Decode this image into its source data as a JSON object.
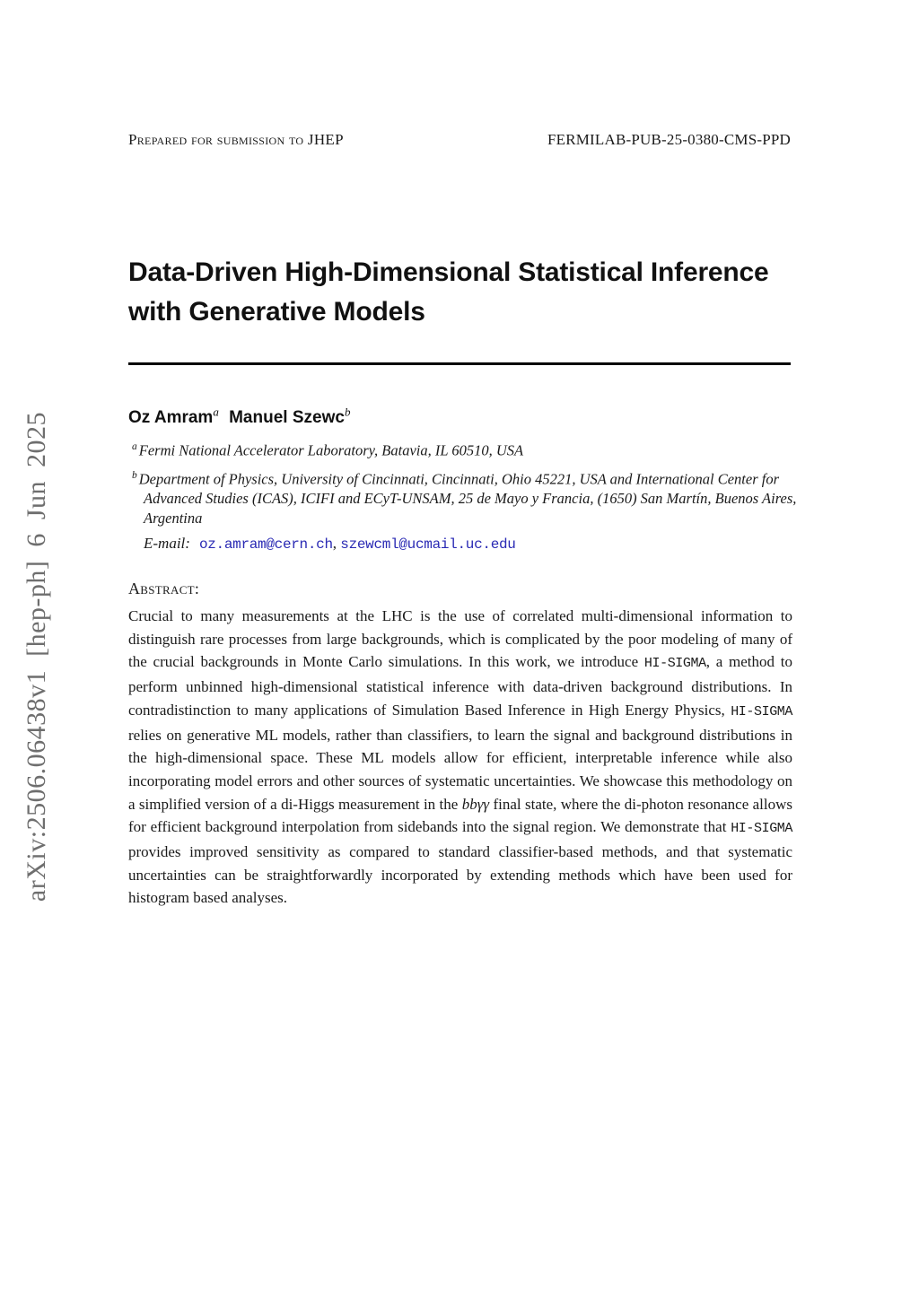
{
  "header": {
    "left": "Prepared for submission to JHEP",
    "right": "FERMILAB-PUB-25-0380-CMS-PPD"
  },
  "title": {
    "line1": "Data-Driven High-Dimensional Statistical Inference",
    "line2": "with Generative Models"
  },
  "authors": [
    {
      "name": "Oz Amram",
      "sup": "a"
    },
    {
      "name": "Manuel Szewc",
      "sup": "b"
    }
  ],
  "affiliations": [
    {
      "sup": "a",
      "text": "Fermi National Accelerator Laboratory, Batavia, IL 60510, USA"
    },
    {
      "sup": "b",
      "text": "Department of Physics, University of Cincinnati, Cincinnati, Ohio 45221, USA and International Center for Advanced Studies (ICAS), ICIFI and ECyT-UNSAM, 25 de Mayo y Francia, (1650) San Martín, Buenos Aires, Argentina"
    }
  ],
  "email": {
    "label": "E-mail:",
    "addresses": [
      "oz.amram@cern.ch",
      "szewcml@ucmail.uc.edu"
    ],
    "separator": ", ",
    "link_color": "#2a2ab4"
  },
  "abstract": {
    "label": "Abstract:",
    "runs": [
      {
        "type": "text",
        "text": "Crucial to many measurements at the LHC is the use of correlated multi-dimensional information to distinguish rare processes from large backgrounds, which is complicated by the poor modeling of many of the crucial backgrounds in Monte Carlo simulations. In this work, we introduce "
      },
      {
        "type": "mono",
        "text": "HI-SIGMA"
      },
      {
        "type": "text",
        "text": ", a method to perform unbinned high-dimensional statistical inference with data-driven background distributions. In contradistinction to many applications of Simulation Based Inference in High Energy Physics, "
      },
      {
        "type": "mono",
        "text": "HI-SIGMA"
      },
      {
        "type": "text",
        "text": " relies on generative ML models, rather than classifiers, to learn the signal and background distributions in the high-dimensional space. These ML models allow for efficient, interpretable inference while also incorporating model errors and other sources of systematic uncertainties. We showcase this methodology on a simplified version of a di-Higgs measurement in the "
      },
      {
        "type": "math",
        "text": "bbγγ"
      },
      {
        "type": "text",
        "text": " final state, where the di-photon resonance allows for efficient background interpolation from sidebands into the signal region. We demonstrate that "
      },
      {
        "type": "mono",
        "text": "HI-SIGMA"
      },
      {
        "type": "text",
        "text": " provides improved sensitivity as compared to standard classifier-based methods, and that systematic uncertainties can be straightforwardly incorporated by extending methods which have been used for histogram based analyses."
      }
    ]
  },
  "sidebar": {
    "arxiv_text": "arXiv:2506.06438v1 [hep-ph] 6 Jun 2025",
    "color": "#6e6e6e"
  }
}
